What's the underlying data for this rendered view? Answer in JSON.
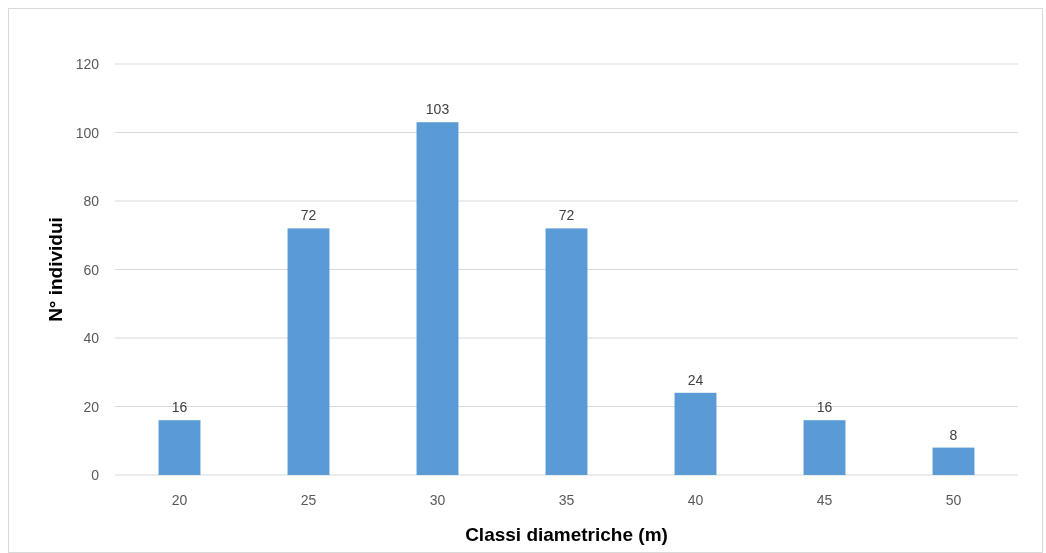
{
  "chart_data": {
    "type": "bar",
    "xlabel": "Classi diametriche (m)",
    "ylabel": "N° individui",
    "categories": [
      "20",
      "25",
      "30",
      "35",
      "40",
      "45",
      "50"
    ],
    "values": [
      16,
      72,
      103,
      72,
      24,
      16,
      8
    ],
    "color": "#5b9bd5",
    "ylim": [
      0,
      120
    ],
    "yticks": [
      0,
      20,
      40,
      60,
      80,
      100,
      120
    ],
    "grid": "y",
    "data_labels": true
  }
}
